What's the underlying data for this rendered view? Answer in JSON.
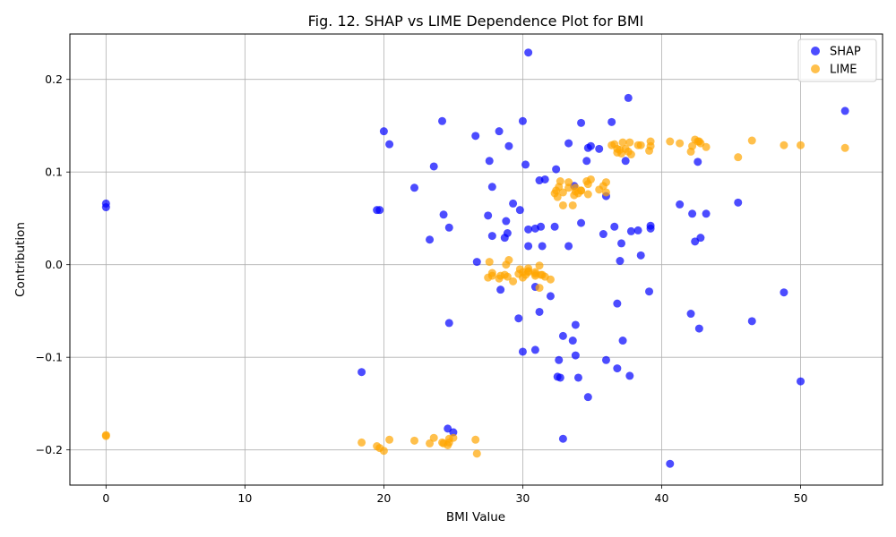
{
  "chart_data": {
    "type": "scatter",
    "title": "Fig. 12. SHAP vs LIME Dependence Plot for BMI",
    "xlabel": "BMI Value",
    "ylabel": "Contribution",
    "xlim": [
      -2.6,
      55.9
    ],
    "ylim": [
      -0.238,
      0.249
    ],
    "xticks": [
      0,
      10,
      20,
      30,
      40,
      50
    ],
    "xtick_labels": [
      "0",
      "10",
      "20",
      "30",
      "40",
      "50"
    ],
    "yticks": [
      -0.2,
      -0.1,
      0.0,
      0.1,
      0.2
    ],
    "ytick_labels": [
      "−0.2",
      "−0.1",
      "0.0",
      "0.1",
      "0.2"
    ],
    "grid": true,
    "legend_position": "top-right",
    "series": [
      {
        "name": "SHAP",
        "color": "#0000ff",
        "points": [
          [
            0,
            0.066
          ],
          [
            0,
            0.062
          ],
          [
            18.4,
            -0.116
          ],
          [
            19.5,
            0.059
          ],
          [
            19.7,
            0.059
          ],
          [
            20.0,
            0.144
          ],
          [
            20.4,
            0.13
          ],
          [
            22.2,
            0.083
          ],
          [
            23.3,
            0.027
          ],
          [
            23.6,
            0.106
          ],
          [
            24.2,
            0.155
          ],
          [
            24.3,
            0.054
          ],
          [
            24.6,
            -0.177
          ],
          [
            24.7,
            0.04
          ],
          [
            24.7,
            -0.063
          ],
          [
            25.0,
            -0.181
          ],
          [
            26.6,
            0.139
          ],
          [
            26.7,
            0.003
          ],
          [
            27.5,
            0.053
          ],
          [
            27.6,
            0.112
          ],
          [
            27.8,
            0.084
          ],
          [
            27.8,
            0.031
          ],
          [
            28.3,
            0.144
          ],
          [
            28.4,
            -0.027
          ],
          [
            28.7,
            0.029
          ],
          [
            28.8,
            0.047
          ],
          [
            28.9,
            0.034
          ],
          [
            29.0,
            0.128
          ],
          [
            29.3,
            0.066
          ],
          [
            29.7,
            -0.058
          ],
          [
            29.8,
            0.059
          ],
          [
            30.0,
            0.155
          ],
          [
            30.0,
            -0.094
          ],
          [
            30.2,
            0.108
          ],
          [
            30.4,
            0.229
          ],
          [
            30.4,
            0.038
          ],
          [
            30.4,
            0.02
          ],
          [
            30.9,
            0.039
          ],
          [
            30.9,
            -0.092
          ],
          [
            30.9,
            -0.024
          ],
          [
            31.2,
            -0.051
          ],
          [
            31.2,
            0.091
          ],
          [
            31.3,
            0.041
          ],
          [
            31.4,
            0.02
          ],
          [
            31.6,
            0.092
          ],
          [
            32.0,
            -0.034
          ],
          [
            32.3,
            0.041
          ],
          [
            32.4,
            0.103
          ],
          [
            32.5,
            -0.121
          ],
          [
            32.6,
            -0.103
          ],
          [
            32.7,
            -0.122
          ],
          [
            32.9,
            -0.077
          ],
          [
            32.9,
            -0.188
          ],
          [
            33.3,
            0.131
          ],
          [
            33.3,
            0.02
          ],
          [
            33.6,
            -0.082
          ],
          [
            33.7,
            0.085
          ],
          [
            33.8,
            -0.065
          ],
          [
            33.8,
            -0.098
          ],
          [
            34.0,
            -0.122
          ],
          [
            34.2,
            0.153
          ],
          [
            34.2,
            0.045
          ],
          [
            34.6,
            0.112
          ],
          [
            34.7,
            0.126
          ],
          [
            34.7,
            -0.143
          ],
          [
            34.9,
            0.128
          ],
          [
            35.5,
            0.125
          ],
          [
            35.8,
            0.033
          ],
          [
            36.0,
            0.074
          ],
          [
            36.0,
            -0.103
          ],
          [
            36.4,
            0.154
          ],
          [
            36.6,
            0.041
          ],
          [
            36.8,
            -0.042
          ],
          [
            36.8,
            -0.112
          ],
          [
            37.0,
            0.004
          ],
          [
            37.1,
            0.023
          ],
          [
            37.2,
            -0.082
          ],
          [
            37.4,
            0.112
          ],
          [
            37.6,
            0.18
          ],
          [
            37.7,
            -0.12
          ],
          [
            37.8,
            0.036
          ],
          [
            38.3,
            0.037
          ],
          [
            38.5,
            0.01
          ],
          [
            39.1,
            -0.029
          ],
          [
            39.2,
            0.042
          ],
          [
            39.2,
            0.039
          ],
          [
            40.6,
            -0.215
          ],
          [
            41.3,
            0.065
          ],
          [
            42.1,
            -0.053
          ],
          [
            42.2,
            0.055
          ],
          [
            42.4,
            0.025
          ],
          [
            42.6,
            0.111
          ],
          [
            42.7,
            -0.069
          ],
          [
            42.8,
            0.029
          ],
          [
            43.2,
            0.055
          ],
          [
            45.5,
            0.067
          ],
          [
            46.5,
            -0.061
          ],
          [
            48.8,
            -0.03
          ],
          [
            50.0,
            -0.126
          ],
          [
            53.2,
            0.166
          ]
        ]
      },
      {
        "name": "LIME",
        "color": "#ffa500",
        "points": [
          [
            0,
            -0.184
          ],
          [
            0,
            -0.185
          ],
          [
            18.4,
            -0.192
          ],
          [
            19.5,
            -0.196
          ],
          [
            19.7,
            -0.198
          ],
          [
            20.0,
            -0.201
          ],
          [
            20.4,
            -0.189
          ],
          [
            22.2,
            -0.19
          ],
          [
            23.3,
            -0.193
          ],
          [
            23.6,
            -0.187
          ],
          [
            24.2,
            -0.192
          ],
          [
            24.3,
            -0.193
          ],
          [
            24.6,
            -0.195
          ],
          [
            24.7,
            -0.188
          ],
          [
            24.7,
            -0.192
          ],
          [
            25.0,
            -0.187
          ],
          [
            26.6,
            -0.189
          ],
          [
            26.7,
            -0.204
          ],
          [
            27.5,
            -0.014
          ],
          [
            27.6,
            0.003
          ],
          [
            27.8,
            -0.009
          ],
          [
            27.8,
            -0.012
          ],
          [
            28.3,
            -0.015
          ],
          [
            28.4,
            -0.012
          ],
          [
            28.7,
            -0.011
          ],
          [
            28.8,
            0.0
          ],
          [
            28.9,
            -0.013
          ],
          [
            29.0,
            0.005
          ],
          [
            29.3,
            -0.018
          ],
          [
            29.7,
            -0.01
          ],
          [
            29.8,
            -0.005
          ],
          [
            30.0,
            -0.008
          ],
          [
            30.0,
            -0.014
          ],
          [
            30.2,
            -0.011
          ],
          [
            30.4,
            -0.004
          ],
          [
            30.4,
            -0.008
          ],
          [
            30.4,
            -0.007
          ],
          [
            30.9,
            -0.012
          ],
          [
            30.9,
            -0.01
          ],
          [
            30.9,
            -0.008
          ],
          [
            31.2,
            -0.001
          ],
          [
            31.2,
            -0.025
          ],
          [
            31.3,
            -0.011
          ],
          [
            31.4,
            -0.011
          ],
          [
            31.6,
            -0.013
          ],
          [
            32.0,
            -0.016
          ],
          [
            32.3,
            0.077
          ],
          [
            32.4,
            0.08
          ],
          [
            32.5,
            0.073
          ],
          [
            32.6,
            0.084
          ],
          [
            32.7,
            0.09
          ],
          [
            32.9,
            0.064
          ],
          [
            32.9,
            0.078
          ],
          [
            33.3,
            0.089
          ],
          [
            33.3,
            0.083
          ],
          [
            33.6,
            0.064
          ],
          [
            33.7,
            0.075
          ],
          [
            33.8,
            0.079
          ],
          [
            33.8,
            0.083
          ],
          [
            34.0,
            0.077
          ],
          [
            34.2,
            0.08
          ],
          [
            34.2,
            0.08
          ],
          [
            34.6,
            0.09
          ],
          [
            34.7,
            0.076
          ],
          [
            34.7,
            0.087
          ],
          [
            34.9,
            0.092
          ],
          [
            35.5,
            0.081
          ],
          [
            35.8,
            0.085
          ],
          [
            36.0,
            0.089
          ],
          [
            36.0,
            0.078
          ],
          [
            36.4,
            0.129
          ],
          [
            36.6,
            0.13
          ],
          [
            36.8,
            0.121
          ],
          [
            36.8,
            0.125
          ],
          [
            37.0,
            0.124
          ],
          [
            37.1,
            0.12
          ],
          [
            37.2,
            0.132
          ],
          [
            37.4,
            0.125
          ],
          [
            37.6,
            0.122
          ],
          [
            37.7,
            0.132
          ],
          [
            37.8,
            0.119
          ],
          [
            38.3,
            0.129
          ],
          [
            38.5,
            0.129
          ],
          [
            39.1,
            0.123
          ],
          [
            39.2,
            0.128
          ],
          [
            39.2,
            0.133
          ],
          [
            40.6,
            0.133
          ],
          [
            41.3,
            0.131
          ],
          [
            42.1,
            0.122
          ],
          [
            42.2,
            0.128
          ],
          [
            42.4,
            0.135
          ],
          [
            42.6,
            0.133
          ],
          [
            42.7,
            0.133
          ],
          [
            42.8,
            0.131
          ],
          [
            43.2,
            0.127
          ],
          [
            45.5,
            0.116
          ],
          [
            46.5,
            0.134
          ],
          [
            48.8,
            0.129
          ],
          [
            50.0,
            0.129
          ],
          [
            53.2,
            0.126
          ]
        ]
      }
    ]
  }
}
